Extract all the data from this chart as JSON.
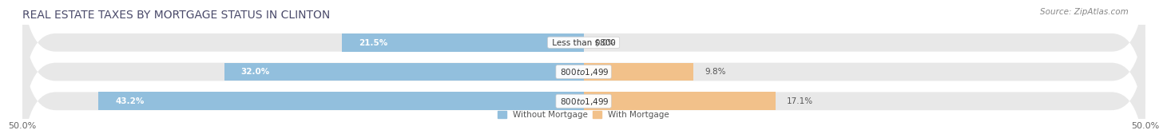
{
  "title": "REAL ESTATE TAXES BY MORTGAGE STATUS IN CLINTON",
  "source": "Source: ZipAtlas.com",
  "bars": [
    {
      "label": "Less than $800",
      "without_mortgage": 21.5,
      "with_mortgage": 0.0
    },
    {
      "label": "$800 to $1,499",
      "without_mortgage": 32.0,
      "with_mortgage": 9.8
    },
    {
      "label": "$800 to $1,499",
      "without_mortgage": 43.2,
      "with_mortgage": 17.1
    }
  ],
  "xlim": [
    -50.0,
    50.0
  ],
  "xtick_left": -50.0,
  "xtick_right": 50.0,
  "color_without": "#92bfdd",
  "color_with": "#f2c18a",
  "bar_height": 0.62,
  "row_bg_color": "#e8e8e8",
  "fig_bg_color": "#ffffff",
  "legend_label_without": "Without Mortgage",
  "legend_label_with": "With Mortgage",
  "title_fontsize": 10,
  "source_fontsize": 7.5,
  "value_fontsize": 7.5,
  "label_fontsize": 7.5,
  "tick_fontsize": 8,
  "wm_label_color": "#555555",
  "wt_label_color": "#555555",
  "wm_label_inside_color": "#ffffff"
}
